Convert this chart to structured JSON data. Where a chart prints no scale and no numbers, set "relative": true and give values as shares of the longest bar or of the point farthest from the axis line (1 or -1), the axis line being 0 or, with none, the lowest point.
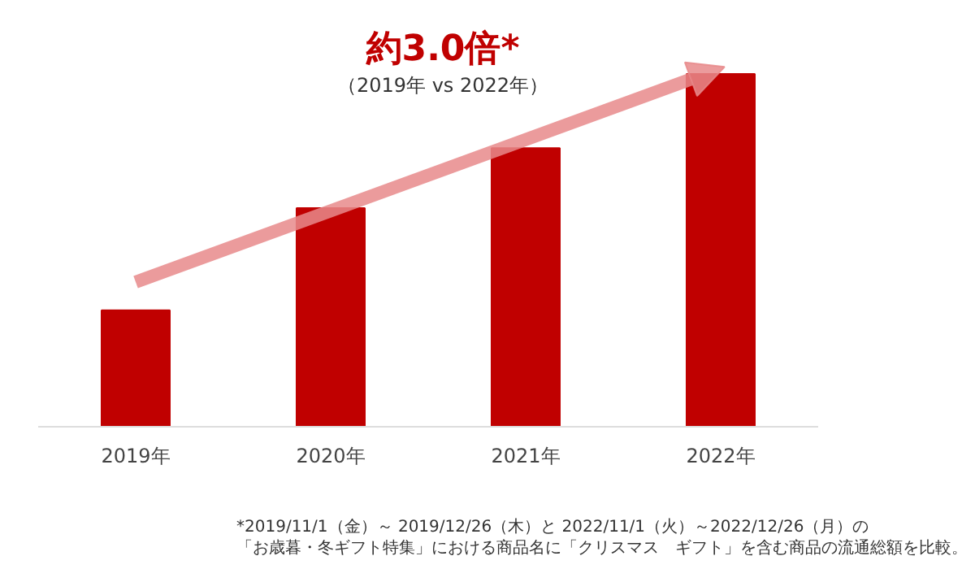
{
  "chart_data": {
    "type": "bar",
    "relative": true,
    "title": "約3.0倍*",
    "subtitle": "（2019年 vs 2022年）",
    "categories": [
      "2019年",
      "2020年",
      "2021年",
      "2022年"
    ],
    "values": [
      0.33,
      0.62,
      0.79,
      1.0
    ],
    "color": "#c00000",
    "grid": false,
    "annotations": [
      "*2019/11/1（金）～ 2019/12/26（木）と 2022/11/1（火）～2022/12/26（月）の",
      "「お歳暮・冬ギフト特集」における商品名に「クリスマス　ギフト」を含む商品の流通総額を比較。"
    ]
  }
}
